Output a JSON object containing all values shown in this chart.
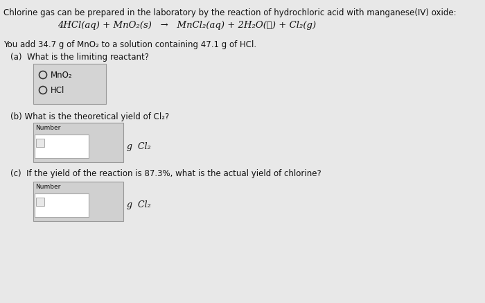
{
  "bg_color": "#e8e8e8",
  "title_line": "Chlorine gas can be prepared in the laboratory by the reaction of hydrochloric acid with manganese(IV) oxide:",
  "eq_left": "4HCl(aq) + MnO₂(s)  →",
  "eq_right": "  MnCl₂(aq) + 2H₂O(ℓ) + Cl₂(g)",
  "given_line": "You add 34.7 g of MnO₂ to a solution containing 47.1 g of HCl.",
  "part_a_label": "(a)  What is the limiting reactant?",
  "radio_option1": "MnO₂",
  "radio_option2": "HCl",
  "part_b_label": "(b) What is the theoretical yield of Cl₂?",
  "number_label": "Number",
  "unit_b": "g  Cl₂",
  "part_c_label": "(c)  If the yield of the reaction is 87.3%, what is the actual yield of chlorine?",
  "unit_c": "g  Cl₂",
  "outer_box_color": "#d0d0d0",
  "outer_box_edge": "#999999",
  "inner_box_color": "#ffffff",
  "inner_box_edge": "#aaaaaa",
  "radio_box_color": "#d4d4d4",
  "radio_box_edge": "#999999",
  "text_color": "#111111",
  "fs_main": 8.5,
  "fs_eq": 9.5
}
